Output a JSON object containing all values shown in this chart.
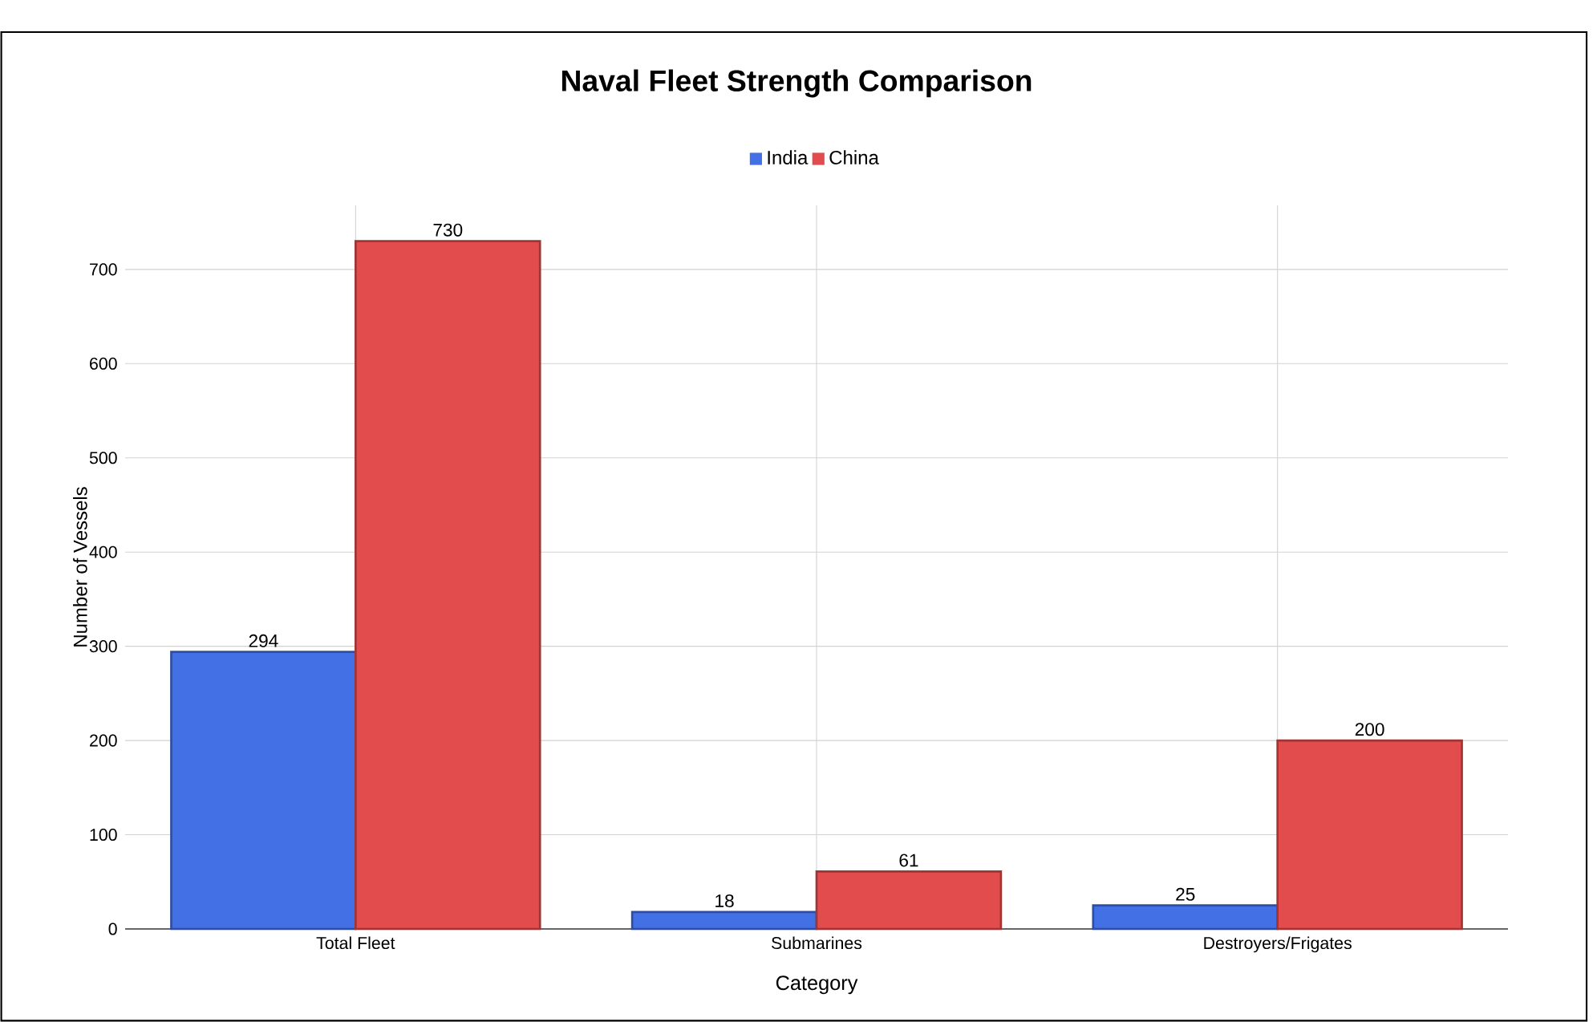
{
  "chart_data": {
    "type": "bar",
    "title": "Naval Fleet Strength Comparison",
    "xlabel": "Category",
    "ylabel": "Number of Vessels",
    "categories": [
      "Total Fleet",
      "Submarines",
      "Destroyers/Frigates"
    ],
    "series": [
      {
        "name": "India",
        "color": "#4470e6",
        "values": [
          294,
          18,
          25
        ]
      },
      {
        "name": "China",
        "color": "#e34c4c",
        "values": [
          730,
          61,
          200
        ]
      }
    ],
    "ylim": [
      0,
      768
    ],
    "yticks": [
      0,
      100,
      200,
      300,
      400,
      500,
      600,
      700
    ],
    "grid": true,
    "legend": "top",
    "data_labels": true
  }
}
